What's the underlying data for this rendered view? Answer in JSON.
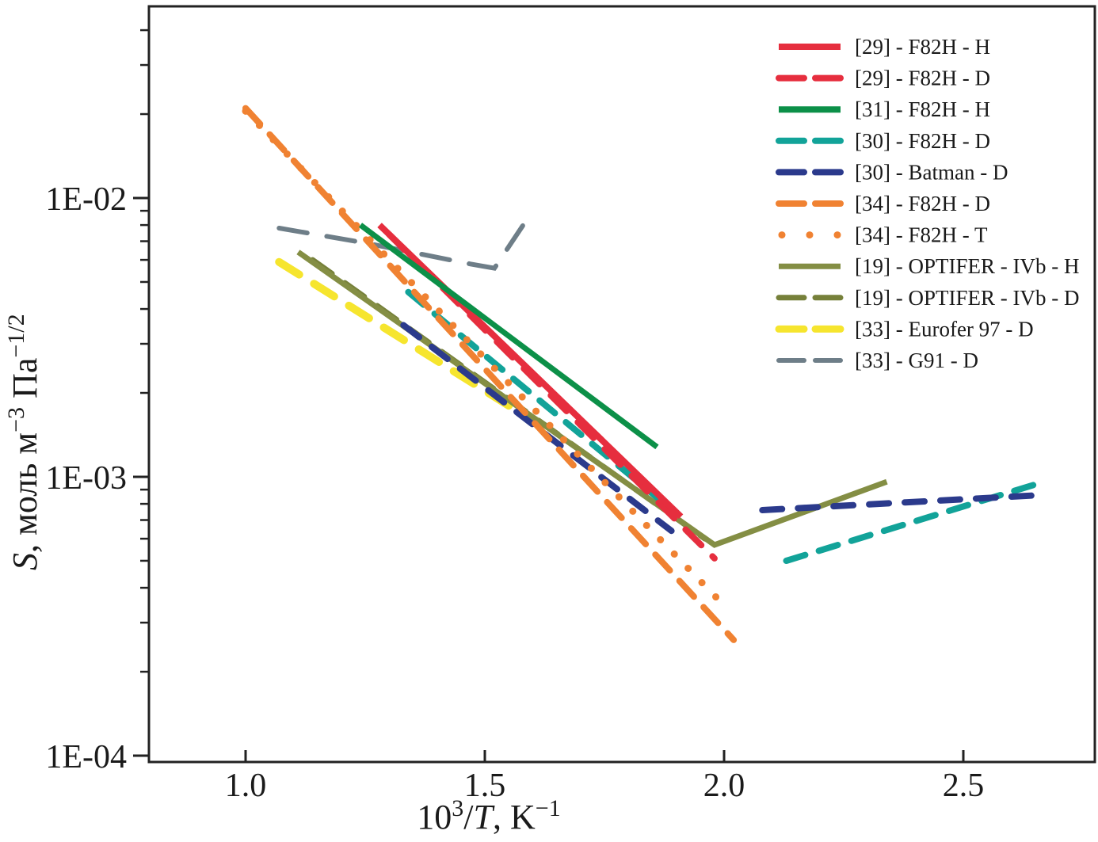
{
  "figure": {
    "background": "#ffffff",
    "frame_color": "#222222"
  },
  "axes": {
    "y": {
      "label_parts": {
        "s_italic": "S",
        "mid1": ", моль м",
        "sup1": "−3",
        "mid2": " Па",
        "sup2": "−1/2"
      },
      "major_ticks": [
        {
          "label": "1E-02",
          "value": 0.01
        },
        {
          "label": "1E-03",
          "value": 0.001
        },
        {
          "label": "1E-04",
          "value": 0.0001
        }
      ],
      "minor_tick_values": [
        0.04,
        0.03,
        0.02,
        0.009,
        0.008,
        0.007,
        0.006,
        0.005,
        0.004,
        0.003,
        0.002,
        0.0009,
        0.0008,
        0.0007,
        0.0006,
        0.0005,
        0.0004,
        0.0003,
        0.0002
      ],
      "scale": "log"
    },
    "x": {
      "label_parts": {
        "base": "10",
        "sup1": "3",
        "slash": "/",
        "t_italic": "T",
        "tail": ", K",
        "sup2": "−1"
      },
      "major_ticks": [
        {
          "label": "1.0",
          "value": 1.0
        },
        {
          "label": "1.5",
          "value": 1.5
        },
        {
          "label": "2.0",
          "value": 2.0
        },
        {
          "label": "2.5",
          "value": 2.5
        }
      ],
      "scale": "linear"
    }
  },
  "legend": {
    "items": [
      {
        "label": "[29] - F82H - H",
        "color": "#e62e3e",
        "style": "solid",
        "width": 8
      },
      {
        "label": "[29] - F82H - D",
        "color": "#e62e3e",
        "style": "dashed",
        "width": 8
      },
      {
        "label": "[31] - F82H - H",
        "color": "#0c9048",
        "style": "solid",
        "width": 8
      },
      {
        "label": "[30] - F82H - D",
        "color": "#12a399",
        "style": "dashed",
        "width": 8
      },
      {
        "label": "[30] - Batman - D",
        "color": "#2b3a8c",
        "style": "dashed",
        "width": 8
      },
      {
        "label": "[34] - F82H - D",
        "color": "#f08232",
        "style": "dashed",
        "width": 8
      },
      {
        "label": "[34] - F82H - T",
        "color": "#f08232",
        "style": "dotted",
        "width": 9
      },
      {
        "label": "[19] - OPTIFER - IVb - H",
        "color": "#848e44",
        "style": "solid",
        "width": 7
      },
      {
        "label": "[19] - OPTIFER - IVb - D",
        "color": "#76803a",
        "style": "dashed",
        "width": 7
      },
      {
        "label": "[33] - Eurofer 97 - D",
        "color": "#f6e52e",
        "style": "dashed",
        "width": 9
      },
      {
        "label": "[33] - G91 - D",
        "color": "#6e7e88",
        "style": "dashed",
        "width": 6
      }
    ]
  },
  "chart_data": {
    "type": "line",
    "xlabel": "10^3/T, K^-1",
    "ylabel": "S, моль м^-3 Па^-1/2",
    "x_axis_range": [
      0.8,
      2.78
    ],
    "y_axis_range_log": [
      0.0001,
      0.049
    ],
    "grid": false,
    "legend_position": "upper-right-inside",
    "series": [
      {
        "name": "[33] - G91 - D",
        "color": "#6e7e88",
        "style": "dashed",
        "width": 6,
        "dash": [
          36,
          25
        ],
        "segments": [
          [
            [
              1.07,
              0.0078
            ],
            [
              1.25,
              0.0069
            ],
            [
              1.47,
              0.0058
            ],
            [
              1.52,
              0.0056
            ],
            [
              1.6,
              0.009
            ]
          ]
        ]
      },
      {
        "name": "[33] - Eurofer 97 - D",
        "color": "#f6e52e",
        "style": "dashed",
        "width": 10,
        "dash": [
          30,
          22
        ],
        "segments": [
          [
            [
              1.07,
              0.0059
            ],
            [
              1.55,
              0.0018
            ]
          ]
        ]
      },
      {
        "name": "[19] - OPTIFER - IVb - D",
        "color": "#76803a",
        "style": "dashed",
        "width": 7,
        "dash": [
          30,
          20
        ],
        "segments": [
          [
            [
              1.14,
              0.006
            ],
            [
              1.96,
              0.0006
            ]
          ]
        ]
      },
      {
        "name": "[19] - OPTIFER - IVb - H",
        "color": "#848e44",
        "style": "solid",
        "width": 7,
        "dash": null,
        "segments": [
          [
            [
              1.11,
              0.0064
            ],
            [
              1.98,
              0.00057
            ],
            [
              2.34,
              0.00096
            ]
          ]
        ]
      },
      {
        "name": "[30] - F82H - D",
        "color": "#12a399",
        "style": "dashed",
        "width": 8,
        "dash": [
          25,
          18
        ],
        "segments": [
          [
            [
              1.34,
              0.0046
            ],
            [
              1.9,
              0.00074
            ]
          ],
          [
            [
              2.13,
              0.0005
            ],
            [
              2.66,
              0.00095
            ]
          ]
        ]
      },
      {
        "name": "[30] - Batman - D",
        "color": "#2b3a8c",
        "style": "dashed",
        "width": 8,
        "dash": [
          25,
          20
        ],
        "segments": [
          [
            [
              1.33,
              0.0035
            ],
            [
              1.89,
              0.00064
            ]
          ],
          [
            [
              2.08,
              0.00076
            ],
            [
              2.66,
              0.00086
            ]
          ]
        ]
      },
      {
        "name": "[34] - F82H - D",
        "color": "#f08232",
        "style": "dashed",
        "width": 8,
        "dash": [
          27,
          18
        ],
        "segments": [
          [
            [
              1.0,
              0.021
            ],
            [
              2.02,
              0.00026
            ]
          ]
        ]
      },
      {
        "name": "[34] - F82H - T",
        "color": "#f08232",
        "style": "dotted",
        "width": 9,
        "dash": [
          0.1,
          25
        ],
        "segments": [
          [
            [
              1.0,
              0.0205
            ],
            [
              1.99,
              0.00036
            ]
          ]
        ]
      },
      {
        "name": "[29] - F82H - D",
        "color": "#e62e3e",
        "style": "dashed",
        "width": 8,
        "dash": [
          28,
          20
        ],
        "segments": [
          [
            [
              1.3,
              0.0074
            ],
            [
              1.98,
              0.00051
            ]
          ]
        ]
      },
      {
        "name": "[29] - F82H - H",
        "color": "#e62e3e",
        "style": "solid",
        "width": 8,
        "dash": null,
        "segments": [
          [
            [
              1.28,
              0.008
            ],
            [
              1.91,
              0.00072
            ]
          ]
        ]
      },
      {
        "name": "[31] - F82H - H",
        "color": "#0c9048",
        "style": "solid",
        "width": 7,
        "dash": null,
        "segments": [
          [
            [
              1.24,
              0.008
            ],
            [
              1.86,
              0.00128
            ]
          ]
        ]
      }
    ]
  }
}
